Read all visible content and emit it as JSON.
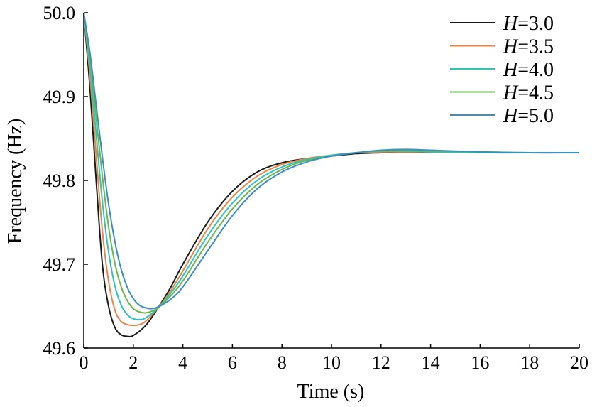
{
  "chart_data": {
    "type": "line",
    "title": "",
    "xlabel": "Time (s)",
    "ylabel": "Frequency (Hz)",
    "xlim": [
      0,
      20
    ],
    "ylim": [
      49.6,
      50.0
    ],
    "xticks": [
      "0",
      "2",
      "4",
      "6",
      "8",
      "10",
      "12",
      "14",
      "16",
      "18",
      "20"
    ],
    "yticks": [
      "49.6",
      "49.7",
      "49.8",
      "49.9",
      "50.0"
    ],
    "grid": false,
    "legend_position": "top-right",
    "series": [
      {
        "name": "H=3.0",
        "label_var": "H",
        "label_value": "=3.0",
        "color": "#1a1a1a",
        "x": [
          0,
          0.25,
          0.5,
          0.75,
          1.0,
          1.25,
          1.5,
          1.75,
          2.0,
          2.5,
          3.0,
          3.5,
          4.0,
          5.0,
          6.0,
          7.0,
          8.0,
          9.0,
          10.0,
          11.0,
          12.0,
          13.0,
          14.0,
          16.0,
          18.0,
          20.0
        ],
        "y": [
          50.0,
          49.91,
          49.8,
          49.7,
          49.65,
          49.625,
          49.616,
          49.614,
          49.615,
          49.627,
          49.648,
          49.672,
          49.7,
          49.75,
          49.787,
          49.81,
          49.821,
          49.826,
          49.829,
          49.832,
          49.833,
          49.833,
          49.833,
          49.833,
          49.833,
          49.833
        ]
      },
      {
        "name": "H=3.5",
        "label_var": "H",
        "label_value": "=3.5",
        "color": "#e8834a",
        "x": [
          0,
          0.25,
          0.5,
          0.75,
          1.0,
          1.25,
          1.5,
          1.75,
          2.0,
          2.25,
          2.5,
          3.0,
          3.5,
          4.0,
          5.0,
          6.0,
          7.0,
          8.0,
          9.0,
          10.0,
          11.0,
          12.0,
          13.0,
          14.0,
          16.0,
          18.0,
          20.0
        ],
        "y": [
          50.0,
          49.925,
          49.83,
          49.74,
          49.68,
          49.646,
          49.632,
          49.628,
          49.627,
          49.628,
          49.632,
          49.648,
          49.668,
          49.692,
          49.742,
          49.78,
          49.805,
          49.819,
          49.826,
          49.83,
          49.833,
          49.834,
          49.834,
          49.834,
          49.833,
          49.833,
          49.833
        ]
      },
      {
        "name": "H=4.0",
        "label_var": "H",
        "label_value": "=4.0",
        "color": "#2ec4b6",
        "x": [
          0,
          0.25,
          0.5,
          0.75,
          1.0,
          1.25,
          1.5,
          1.75,
          2.0,
          2.25,
          2.5,
          3.0,
          3.5,
          4.0,
          5.0,
          6.0,
          7.0,
          8.0,
          9.0,
          10.0,
          11.0,
          12.0,
          13.0,
          14.0,
          16.0,
          18.0,
          20.0
        ],
        "y": [
          50.0,
          49.935,
          49.855,
          49.775,
          49.715,
          49.675,
          49.652,
          49.64,
          49.635,
          49.634,
          49.636,
          49.648,
          49.665,
          49.686,
          49.734,
          49.773,
          49.8,
          49.816,
          49.825,
          49.83,
          49.833,
          49.835,
          49.835,
          49.834,
          49.833,
          49.833,
          49.833
        ]
      },
      {
        "name": "H=4.5",
        "label_var": "H",
        "label_value": "=4.5",
        "color": "#6ab54e",
        "x": [
          0,
          0.25,
          0.5,
          0.75,
          1.0,
          1.25,
          1.5,
          1.75,
          2.0,
          2.25,
          2.5,
          2.75,
          3.0,
          3.5,
          4.0,
          5.0,
          6.0,
          7.0,
          8.0,
          9.0,
          10.0,
          11.0,
          12.0,
          13.0,
          14.0,
          16.0,
          18.0,
          20.0
        ],
        "y": [
          50.0,
          49.945,
          49.875,
          49.805,
          49.745,
          49.702,
          49.674,
          49.657,
          49.647,
          49.643,
          49.642,
          49.644,
          49.648,
          49.662,
          49.68,
          49.726,
          49.766,
          49.795,
          49.813,
          49.824,
          49.829,
          49.833,
          49.835,
          49.836,
          49.835,
          49.834,
          49.833,
          49.833
        ]
      },
      {
        "name": "H=5.0",
        "label_var": "H",
        "label_value": "=5.0",
        "color": "#3a8fc2",
        "x": [
          0,
          0.25,
          0.5,
          0.75,
          1.0,
          1.25,
          1.5,
          1.75,
          2.0,
          2.25,
          2.5,
          2.75,
          3.0,
          3.5,
          4.0,
          5.0,
          6.0,
          7.0,
          8.0,
          9.0,
          10.0,
          11.0,
          12.0,
          13.0,
          14.0,
          16.0,
          18.0,
          20.0
        ],
        "y": [
          50.0,
          49.952,
          49.89,
          49.828,
          49.772,
          49.728,
          49.695,
          49.673,
          49.659,
          49.651,
          49.648,
          49.647,
          49.649,
          49.658,
          49.673,
          49.716,
          49.758,
          49.79,
          49.81,
          49.822,
          49.829,
          49.833,
          49.836,
          49.837,
          49.836,
          49.834,
          49.833,
          49.833
        ]
      }
    ]
  }
}
